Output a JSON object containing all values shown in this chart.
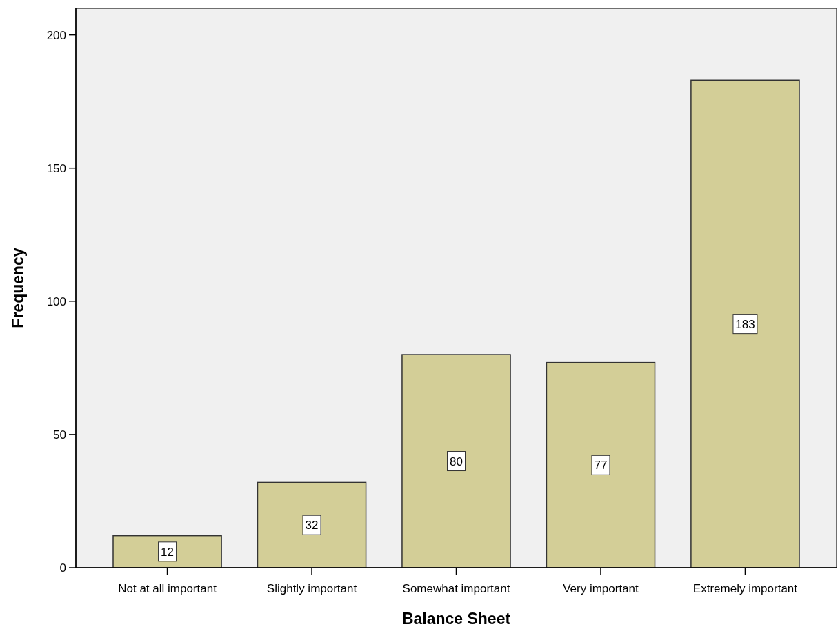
{
  "chart_data": {
    "type": "bar",
    "xlabel": "Balance Sheet",
    "ylabel": "Frequency",
    "categories": [
      "Not at all important",
      "Slightly important",
      "Somewhat important",
      "Very important",
      "Extremely important"
    ],
    "values": [
      12,
      32,
      80,
      77,
      183
    ],
    "color": "#d3ce97",
    "ylim": [
      0,
      210
    ],
    "yticks": [
      0,
      50,
      100,
      150,
      200
    ],
    "grid": false,
    "data_labels": true
  }
}
